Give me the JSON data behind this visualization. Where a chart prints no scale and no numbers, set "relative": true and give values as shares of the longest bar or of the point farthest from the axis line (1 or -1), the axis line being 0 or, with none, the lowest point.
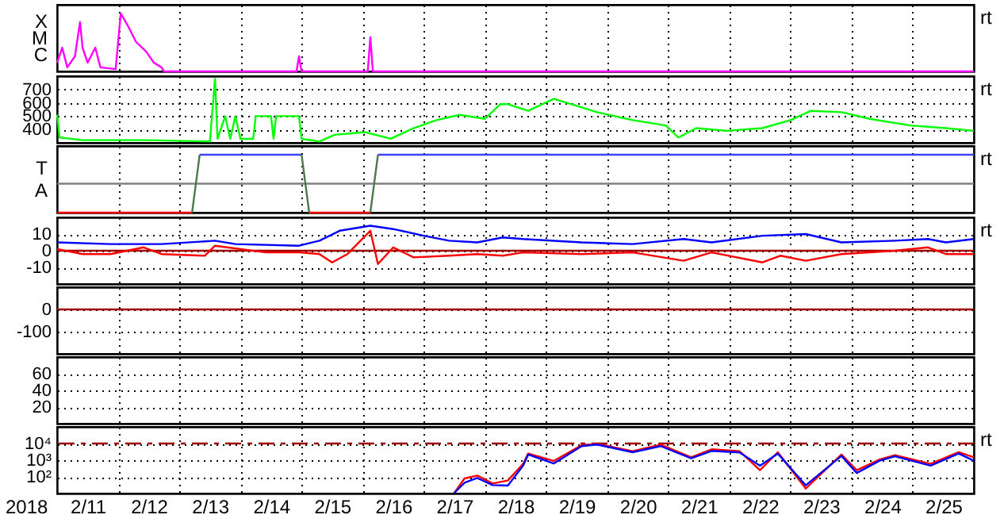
{
  "chart_data": [
    {
      "type": "line",
      "relative": true,
      "xlim": [
        "2018-02-11T00:00",
        "2018-02-26T00:00"
      ],
      "xticks": [
        {
          "value": "2018-02-12T00:00",
          "label": null
        },
        {
          "value": "2018-02-13T00:00",
          "label": null
        },
        {
          "value": "2018-02-14T00:00",
          "label": null
        },
        {
          "value": "2018-02-15T00:00",
          "label": null
        },
        {
          "value": "2018-02-16T00:00",
          "label": null
        },
        {
          "value": "2018-02-17T00:00",
          "label": null
        },
        {
          "value": "2018-02-18T00:00",
          "label": null
        },
        {
          "value": "2018-02-19T00:00",
          "label": null
        },
        {
          "value": "2018-02-20T00:00",
          "label": null
        },
        {
          "value": "2018-02-21T00:00",
          "label": null
        },
        {
          "value": "2018-02-22T00:00",
          "label": null
        },
        {
          "value": "2018-02-23T00:00",
          "label": null
        },
        {
          "value": "2018-02-24T00:00",
          "label": null
        },
        {
          "value": "2018-02-25T00:00",
          "label": null
        }
      ],
      "grid": "x",
      "tick_labels": false,
      "annotations": [
        "rt",
        "X",
        "M",
        "C"
      ],
      "series": [
        {
          "color": "#ff00ff",
          "x": [
            "2018-02-11T00:00",
            "2018-02-11T02:00",
            "2018-02-11T04:00",
            "2018-02-11T07:00",
            "2018-02-11T09:00",
            "2018-02-11T10:00",
            "2018-02-11T12:00",
            "2018-02-11T15:00",
            "2018-02-11T17:00",
            "2018-02-11T23:00",
            "2018-02-12T01:00",
            "2018-02-12T04:00",
            "2018-02-12T07:00",
            "2018-02-12T11:00",
            "2018-02-12T14:00",
            "2018-02-12T17:00",
            "2018-02-12T18:00",
            "2018-02-14T22:00",
            "2018-02-14T23:00",
            "2018-02-15T00:00",
            "2018-02-15T01:00",
            "2018-02-16T02:00",
            "2018-02-16T03:00",
            "2018-02-16T04:00",
            "2018-02-26T00:00"
          ],
          "values": [
            0.15,
            0.41,
            0.07,
            0.26,
            0.85,
            0.41,
            0.15,
            0.41,
            0.07,
            0.04,
            1,
            0.77,
            0.51,
            0.34,
            0.15,
            0.07,
            0,
            0,
            0.26,
            0,
            0,
            0,
            0.59,
            0,
            0
          ]
        }
      ]
    },
    {
      "type": "line",
      "xlim": [
        "2018-02-11T00:00",
        "2018-02-26T00:00"
      ],
      "xticks": [
        {
          "value": "2018-02-12T00:00",
          "label": null
        },
        {
          "value": "2018-02-13T00:00",
          "label": null
        },
        {
          "value": "2018-02-14T00:00",
          "label": null
        },
        {
          "value": "2018-02-15T00:00",
          "label": null
        },
        {
          "value": "2018-02-16T00:00",
          "label": null
        },
        {
          "value": "2018-02-17T00:00",
          "label": null
        },
        {
          "value": "2018-02-18T00:00",
          "label": null
        },
        {
          "value": "2018-02-19T00:00",
          "label": null
        },
        {
          "value": "2018-02-20T00:00",
          "label": null
        },
        {
          "value": "2018-02-21T00:00",
          "label": null
        },
        {
          "value": "2018-02-22T00:00",
          "label": null
        },
        {
          "value": "2018-02-23T00:00",
          "label": null
        },
        {
          "value": "2018-02-24T00:00",
          "label": null
        },
        {
          "value": "2018-02-25T00:00",
          "label": null
        }
      ],
      "ylim": [
        300,
        800
      ],
      "yticks": [
        400,
        500,
        600,
        700
      ],
      "grid": true,
      "tick_labels": "y",
      "annotations": [
        "rt"
      ],
      "series": [
        {
          "color": "#00ff00",
          "x": [
            "2018-02-11T00:00",
            "2018-02-11T01:00",
            "2018-02-11T10:00",
            "2018-02-12T11:00",
            "2018-02-13T12:00",
            "2018-02-13T14:00",
            "2018-02-13T15:00",
            "2018-02-13T18:00",
            "2018-02-13T20:00",
            "2018-02-13T22:00",
            "2018-02-14T00:00",
            "2018-02-14T05:00",
            "2018-02-14T06:00",
            "2018-02-14T12:00",
            "2018-02-14T13:00",
            "2018-02-14T14:00",
            "2018-02-14T23:00",
            "2018-02-15T00:00",
            "2018-02-15T07:00",
            "2018-02-15T13:00",
            "2018-02-16T01:00",
            "2018-02-16T11:00",
            "2018-02-16T20:00",
            "2018-02-17T05:00",
            "2018-02-17T14:00",
            "2018-02-18T00:00",
            "2018-02-18T06:00",
            "2018-02-18T09:00",
            "2018-02-18T17:00",
            "2018-02-19T03:00",
            "2018-02-19T10:00",
            "2018-02-19T20:00",
            "2018-02-20T10:00",
            "2018-02-20T23:00",
            "2018-02-21T04:00",
            "2018-02-21T11:00",
            "2018-02-21T23:00",
            "2018-02-22T13:00",
            "2018-02-23T00:00",
            "2018-02-23T08:00",
            "2018-02-23T20:00",
            "2018-02-24T07:00",
            "2018-02-24T23:00",
            "2018-02-25T13:00",
            "2018-02-26T00:00"
          ],
          "values": [
            510,
            340,
            320,
            320,
            310,
            780,
            330,
            500,
            330,
            500,
            330,
            330,
            500,
            500,
            330,
            500,
            500,
            330,
            310,
            360,
            380,
            330,
            410,
            470,
            510,
            480,
            590,
            590,
            540,
            630,
            590,
            530,
            470,
            430,
            340,
            410,
            390,
            410,
            470,
            540,
            530,
            480,
            430,
            410,
            390
          ]
        }
      ]
    },
    {
      "type": "line",
      "relative": true,
      "xlim": [
        "2018-02-11T00:00",
        "2018-02-26T00:00"
      ],
      "xticks": [
        {
          "value": "2018-02-12T00:00",
          "label": null
        },
        {
          "value": "2018-02-13T00:00",
          "label": null
        },
        {
          "value": "2018-02-14T00:00",
          "label": null
        },
        {
          "value": "2018-02-15T00:00",
          "label": null
        },
        {
          "value": "2018-02-16T00:00",
          "label": null
        },
        {
          "value": "2018-02-17T00:00",
          "label": null
        },
        {
          "value": "2018-02-18T00:00",
          "label": null
        },
        {
          "value": "2018-02-19T00:00",
          "label": null
        },
        {
          "value": "2018-02-20T00:00",
          "label": null
        },
        {
          "value": "2018-02-21T00:00",
          "label": null
        },
        {
          "value": "2018-02-22T00:00",
          "label": null
        },
        {
          "value": "2018-02-23T00:00",
          "label": null
        },
        {
          "value": "2018-02-24T00:00",
          "label": null
        },
        {
          "value": "2018-02-25T00:00",
          "label": null
        }
      ],
      "grid": "x",
      "tick_labels": false,
      "annotations": [
        "rt",
        "T",
        "A"
      ],
      "ref_lines": [
        {
          "axis": "y",
          "value": 0.5,
          "color": "#808080"
        }
      ],
      "series": [
        {
          "color": "#ff0000",
          "x": [
            "2018-02-11T00:00",
            "2018-02-13T05:00"
          ],
          "values": [
            0,
            0
          ]
        },
        {
          "color": "#4a7a4a",
          "x": [
            "2018-02-13T05:00",
            "2018-02-13T08:00"
          ],
          "values": [
            0,
            1
          ]
        },
        {
          "color": "#4040ff",
          "x": [
            "2018-02-13T08:00",
            "2018-02-15T00:00"
          ],
          "values": [
            1,
            1
          ]
        },
        {
          "color": "#4a7a4a",
          "x": [
            "2018-02-15T00:00",
            "2018-02-15T03:00"
          ],
          "values": [
            1,
            0
          ]
        },
        {
          "color": "#ff0000",
          "x": [
            "2018-02-15T03:00",
            "2018-02-16T03:00"
          ],
          "values": [
            0,
            0
          ]
        },
        {
          "color": "#4a7a4a",
          "x": [
            "2018-02-16T03:00",
            "2018-02-16T06:00"
          ],
          "values": [
            0,
            1
          ]
        },
        {
          "color": "#4040ff",
          "x": [
            "2018-02-16T06:00",
            "2018-02-26T00:00"
          ],
          "values": [
            1,
            1
          ]
        }
      ]
    },
    {
      "type": "line",
      "xlim": [
        "2018-02-11T00:00",
        "2018-02-26T00:00"
      ],
      "xticks": [
        {
          "value": "2018-02-12T00:00",
          "label": null
        },
        {
          "value": "2018-02-13T00:00",
          "label": null
        },
        {
          "value": "2018-02-14T00:00",
          "label": null
        },
        {
          "value": "2018-02-15T00:00",
          "label": null
        },
        {
          "value": "2018-02-16T00:00",
          "label": null
        },
        {
          "value": "2018-02-17T00:00",
          "label": null
        },
        {
          "value": "2018-02-18T00:00",
          "label": null
        },
        {
          "value": "2018-02-19T00:00",
          "label": null
        },
        {
          "value": "2018-02-20T00:00",
          "label": null
        },
        {
          "value": "2018-02-21T00:00",
          "label": null
        },
        {
          "value": "2018-02-22T00:00",
          "label": null
        },
        {
          "value": "2018-02-23T00:00",
          "label": null
        },
        {
          "value": "2018-02-24T00:00",
          "label": null
        },
        {
          "value": "2018-02-25T00:00",
          "label": null
        }
      ],
      "ylim": [
        -20,
        20
      ],
      "yticks": [
        -10,
        0,
        10
      ],
      "grid": true,
      "tick_labels": "y",
      "annotations": [
        "rt"
      ],
      "ref_lines": [
        {
          "axis": "y",
          "value": 0,
          "color": "#a00000"
        }
      ],
      "series": [
        {
          "color": "#0000ff",
          "x": [
            "2018-02-11T00:00",
            "2018-02-11T21:00",
            "2018-02-12T17:00",
            "2018-02-13T14:00",
            "2018-02-13T22:00",
            "2018-02-14T23:00",
            "2018-02-15T07:00",
            "2018-02-15T15:00",
            "2018-02-16T03:00",
            "2018-02-16T12:00",
            "2018-02-17T00:00",
            "2018-02-17T10:00",
            "2018-02-17T21:00",
            "2018-02-18T07:00",
            "2018-02-18T15:00",
            "2018-02-19T14:00",
            "2018-02-20T10:00",
            "2018-02-21T06:00",
            "2018-02-21T17:00",
            "2018-02-22T13:00",
            "2018-02-23T06:00",
            "2018-02-23T20:00",
            "2018-02-24T17:00",
            "2018-02-25T06:00",
            "2018-02-25T13:00",
            "2018-02-26T00:00"
          ],
          "values": [
            5,
            4,
            4,
            6,
            4,
            3,
            6,
            12,
            15,
            13,
            9,
            6,
            5,
            8,
            7,
            5,
            4,
            7,
            5,
            9,
            10,
            5,
            6,
            7,
            5,
            7
          ]
        },
        {
          "color": "#ff0000",
          "x": [
            "2018-02-11T00:00",
            "2018-02-11T10:00",
            "2018-02-11T21:00",
            "2018-02-12T10:00",
            "2018-02-12T17:00",
            "2018-02-13T10:00",
            "2018-02-13T14:00",
            "2018-02-14T10:00",
            "2018-02-14T23:00",
            "2018-02-15T07:00",
            "2018-02-15T12:00",
            "2018-02-15T18:00",
            "2018-02-16T03:00",
            "2018-02-16T06:00",
            "2018-02-16T12:00",
            "2018-02-16T20:00",
            "2018-02-17T10:00",
            "2018-02-17T21:00",
            "2018-02-18T07:00",
            "2018-02-18T15:00",
            "2018-02-19T14:00",
            "2018-02-20T10:00",
            "2018-02-21T06:00",
            "2018-02-21T17:00",
            "2018-02-22T13:00",
            "2018-02-22T20:00",
            "2018-02-23T06:00",
            "2018-02-23T20:00",
            "2018-02-24T17:00",
            "2018-02-25T06:00",
            "2018-02-25T13:00",
            "2018-02-26T00:00"
          ],
          "values": [
            1,
            -2,
            -2,
            2,
            -2,
            -3,
            3,
            -1,
            -1,
            -2,
            -7,
            -2,
            12,
            -8,
            2,
            -4,
            -3,
            -2,
            -3,
            -1,
            -2,
            -1,
            -6,
            -1,
            -7,
            -3,
            -6,
            -2,
            0,
            2,
            -2,
            -2
          ]
        }
      ]
    },
    {
      "type": "line",
      "xlim": [
        "2018-02-11T00:00",
        "2018-02-26T00:00"
      ],
      "xticks": [
        {
          "value": "2018-02-12T00:00",
          "label": null
        },
        {
          "value": "2018-02-13T00:00",
          "label": null
        },
        {
          "value": "2018-02-14T00:00",
          "label": null
        },
        {
          "value": "2018-02-15T00:00",
          "label": null
        },
        {
          "value": "2018-02-16T00:00",
          "label": null
        },
        {
          "value": "2018-02-17T00:00",
          "label": null
        },
        {
          "value": "2018-02-18T00:00",
          "label": null
        },
        {
          "value": "2018-02-19T00:00",
          "label": null
        },
        {
          "value": "2018-02-20T00:00",
          "label": null
        },
        {
          "value": "2018-02-21T00:00",
          "label": null
        },
        {
          "value": "2018-02-22T00:00",
          "label": null
        },
        {
          "value": "2018-02-23T00:00",
          "label": null
        },
        {
          "value": "2018-02-24T00:00",
          "label": null
        },
        {
          "value": "2018-02-25T00:00",
          "label": null
        }
      ],
      "ylim": [
        -200,
        100
      ],
      "yticks": [
        -100,
        0
      ],
      "grid": true,
      "tick_labels": "y",
      "ref_lines": [
        {
          "axis": "y",
          "value": 0,
          "color": "#a00000"
        }
      ]
    },
    {
      "type": "line",
      "xlim": [
        "2018-02-11T00:00",
        "2018-02-26T00:00"
      ],
      "xticks": [
        {
          "value": "2018-02-12T00:00",
          "label": null
        },
        {
          "value": "2018-02-13T00:00",
          "label": null
        },
        {
          "value": "2018-02-14T00:00",
          "label": null
        },
        {
          "value": "2018-02-15T00:00",
          "label": null
        },
        {
          "value": "2018-02-16T00:00",
          "label": null
        },
        {
          "value": "2018-02-17T00:00",
          "label": null
        },
        {
          "value": "2018-02-18T00:00",
          "label": null
        },
        {
          "value": "2018-02-19T00:00",
          "label": null
        },
        {
          "value": "2018-02-20T00:00",
          "label": null
        },
        {
          "value": "2018-02-21T00:00",
          "label": null
        },
        {
          "value": "2018-02-22T00:00",
          "label": null
        },
        {
          "value": "2018-02-23T00:00",
          "label": null
        },
        {
          "value": "2018-02-24T00:00",
          "label": null
        },
        {
          "value": "2018-02-25T00:00",
          "label": null
        }
      ],
      "ylim": [
        0,
        80
      ],
      "yticks": [
        20,
        40,
        60
      ],
      "grid": true,
      "tick_labels": "y"
    },
    {
      "type": "line",
      "xlim": [
        "2018-02-11T00:00",
        "2018-02-26T00:00"
      ],
      "xticks": [
        {
          "value": "2018-02-11T12:00",
          "label": "2/11"
        },
        {
          "value": "2018-02-12T00:00",
          "label": null
        },
        {
          "value": "2018-02-12T12:00",
          "label": "2/12"
        },
        {
          "value": "2018-02-13T00:00",
          "label": null
        },
        {
          "value": "2018-02-13T12:00",
          "label": "2/13"
        },
        {
          "value": "2018-02-14T00:00",
          "label": null
        },
        {
          "value": "2018-02-14T12:00",
          "label": "2/14"
        },
        {
          "value": "2018-02-15T00:00",
          "label": null
        },
        {
          "value": "2018-02-15T12:00",
          "label": "2/15"
        },
        {
          "value": "2018-02-16T00:00",
          "label": null
        },
        {
          "value": "2018-02-16T12:00",
          "label": "2/16"
        },
        {
          "value": "2018-02-17T00:00",
          "label": null
        },
        {
          "value": "2018-02-17T12:00",
          "label": "2/17"
        },
        {
          "value": "2018-02-18T00:00",
          "label": null
        },
        {
          "value": "2018-02-18T12:00",
          "label": "2/18"
        },
        {
          "value": "2018-02-19T00:00",
          "label": null
        },
        {
          "value": "2018-02-19T12:00",
          "label": "2/19"
        },
        {
          "value": "2018-02-20T00:00",
          "label": null
        },
        {
          "value": "2018-02-20T12:00",
          "label": "2/20"
        },
        {
          "value": "2018-02-21T00:00",
          "label": null
        },
        {
          "value": "2018-02-21T12:00",
          "label": "2/21"
        },
        {
          "value": "2018-02-22T00:00",
          "label": null
        },
        {
          "value": "2018-02-22T12:00",
          "label": "2/22"
        },
        {
          "value": "2018-02-23T00:00",
          "label": null
        },
        {
          "value": "2018-02-23T12:00",
          "label": "2/23"
        },
        {
          "value": "2018-02-24T00:00",
          "label": null
        },
        {
          "value": "2018-02-24T12:00",
          "label": "2/24"
        },
        {
          "value": "2018-02-25T00:00",
          "label": null
        },
        {
          "value": "2018-02-25T12:00",
          "label": "2/25"
        }
      ],
      "xlabel": "2018",
      "log": true,
      "ylim": [
        10,
        100000
      ],
      "yticks": [
        {
          "value": 100,
          "label": "10²"
        },
        {
          "value": 1000,
          "label": "10³"
        },
        {
          "value": 10000,
          "label": "10⁴"
        }
      ],
      "grid": true,
      "annotations": [
        "rt"
      ],
      "ref_lines": [
        {
          "axis": "y",
          "value": 10000,
          "color": "#a00000",
          "line_style": "dashed"
        }
      ],
      "series": [
        {
          "color": "#ff0000",
          "x": [
            "2018-02-17T12:00",
            "2018-02-17T16:00",
            "2018-02-17T21:00",
            "2018-02-18T03:00",
            "2018-02-18T09:00",
            "2018-02-18T15:00",
            "2018-02-18T17:00",
            "2018-02-19T03:00",
            "2018-02-19T14:00",
            "2018-02-19T20:00",
            "2018-02-20T10:00",
            "2018-02-20T21:00",
            "2018-02-21T09:00",
            "2018-02-21T17:00",
            "2018-02-22T04:00",
            "2018-02-22T12:00",
            "2018-02-22T19:00",
            "2018-02-23T06:00",
            "2018-02-23T20:00",
            "2018-02-24T02:00",
            "2018-02-24T11:00",
            "2018-02-24T17:00",
            "2018-02-25T07:00",
            "2018-02-25T18:00",
            "2018-02-26T00:00"
          ],
          "values": [
            11,
            80,
            120,
            40,
            60,
            600,
            2500,
            900,
            8000,
            9500,
            3500,
            8500,
            1500,
            4500,
            3500,
            250,
            3000,
            20,
            2200,
            250,
            1100,
            2000,
            600,
            3000,
            1500
          ]
        },
        {
          "color": "#0000ff",
          "x": [
            "2018-02-17T12:00",
            "2018-02-17T16:00",
            "2018-02-17T21:00",
            "2018-02-18T03:00",
            "2018-02-18T09:00",
            "2018-02-18T15:00",
            "2018-02-18T17:00",
            "2018-02-19T03:00",
            "2018-02-19T14:00",
            "2018-02-19T20:00",
            "2018-02-20T10:00",
            "2018-02-20T21:00",
            "2018-02-21T09:00",
            "2018-02-21T17:00",
            "2018-02-22T04:00",
            "2018-02-22T12:00",
            "2018-02-22T19:00",
            "2018-02-23T06:00",
            "2018-02-23T20:00",
            "2018-02-24T02:00",
            "2018-02-24T11:00",
            "2018-02-24T17:00",
            "2018-02-25T07:00",
            "2018-02-25T18:00",
            "2018-02-26T00:00"
          ],
          "values": [
            11,
            44,
            85,
            32,
            30,
            470,
            2200,
            630,
            7000,
            8700,
            3000,
            7000,
            1300,
            3600,
            2900,
            470,
            2500,
            31,
            1800,
            170,
            930,
            1700,
            470,
            2500,
            930
          ]
        }
      ]
    }
  ]
}
